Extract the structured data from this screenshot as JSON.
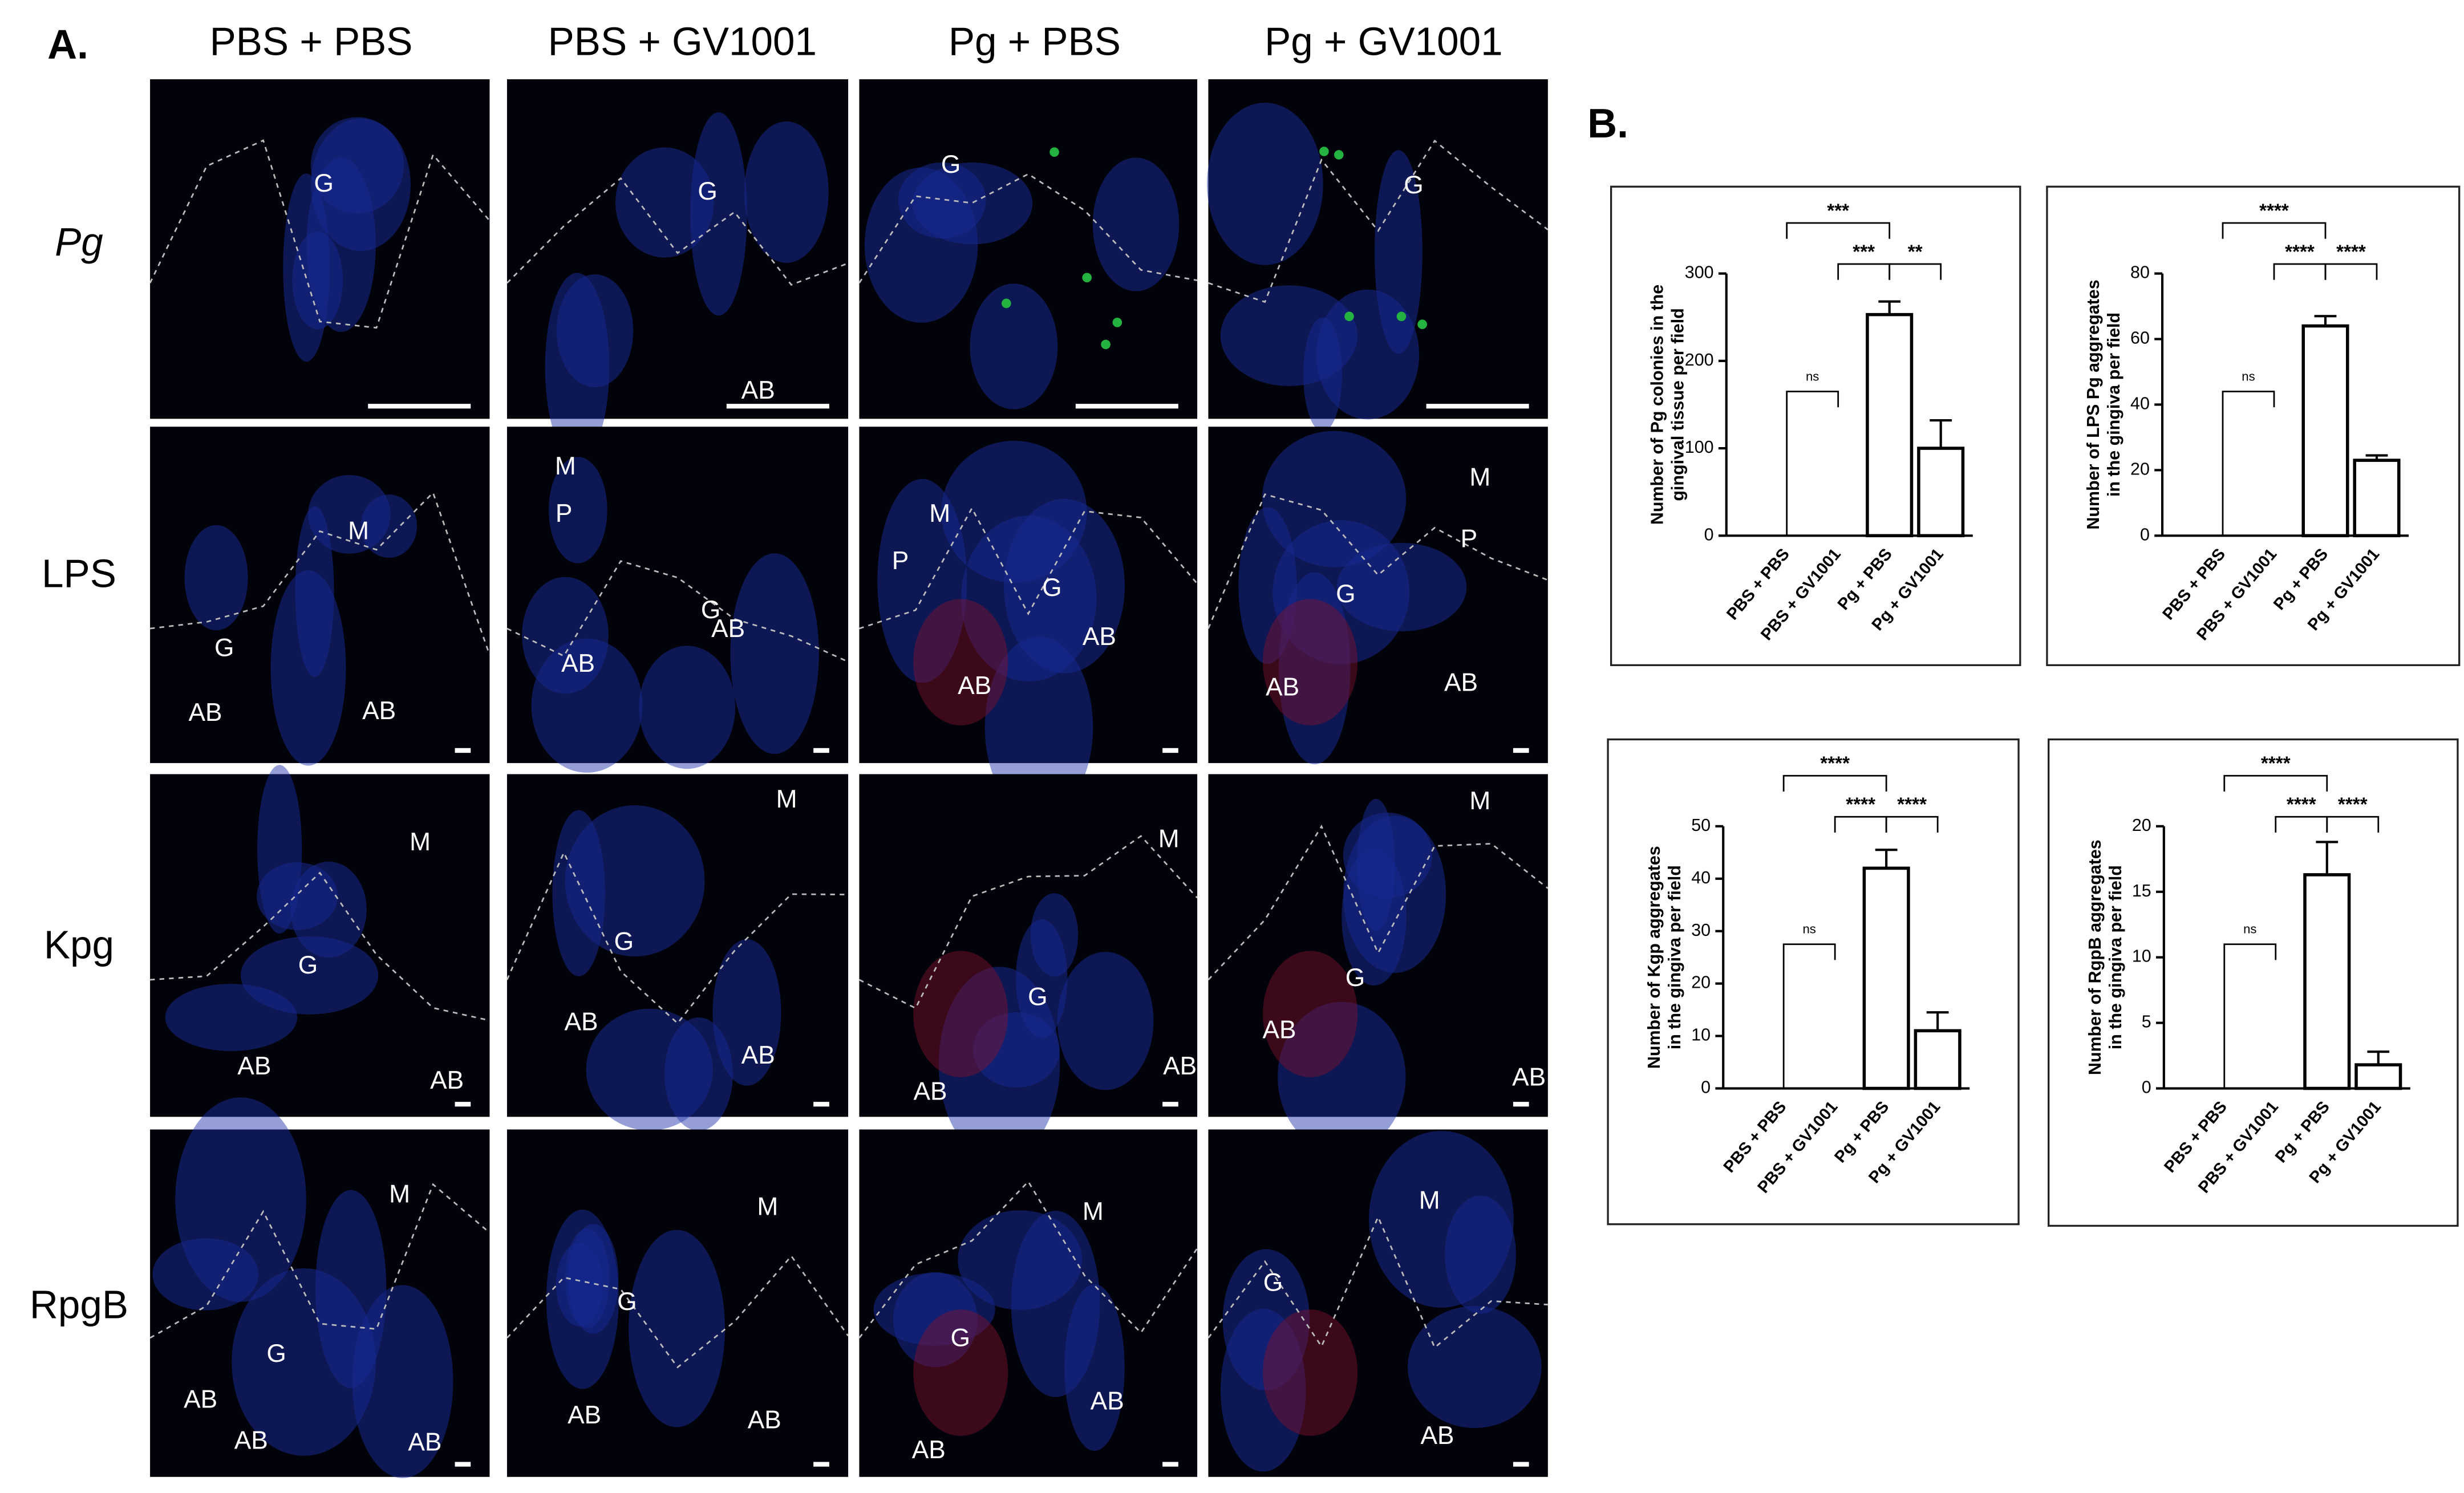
{
  "panel_a": {
    "label": "A.",
    "columns": [
      "PBS + PBS",
      "PBS + GV1001",
      "Pg + PBS",
      "Pg + GV1001"
    ],
    "rows": [
      "Pg",
      "LPS",
      "Kpg",
      "RpgB"
    ],
    "tiles": [
      [
        [
          "G"
        ],
        [
          "G",
          "AB"
        ],
        [
          "G"
        ],
        [
          "G"
        ]
      ],
      [
        [
          "M",
          "G",
          "AB",
          "AB"
        ],
        [
          "M",
          "P",
          "G",
          "AB",
          "AB"
        ],
        [
          "M",
          "P",
          "G",
          "AB",
          "AB"
        ],
        [
          "M",
          "P",
          "G",
          "AB",
          "AB"
        ]
      ],
      [
        [
          "M",
          "G",
          "AB",
          "AB"
        ],
        [
          "M",
          "G",
          "AB",
          "AB"
        ],
        [
          "M",
          "G",
          "AB",
          "AB"
        ],
        [
          "M",
          "G",
          "AB",
          "AB"
        ]
      ],
      [
        [
          "M",
          "G",
          "AB",
          "AB",
          "AB"
        ],
        [
          "M",
          "G",
          "AB",
          "AB"
        ],
        [
          "M",
          "G",
          "AB",
          "AB"
        ],
        [
          "M",
          "G",
          "AB"
        ]
      ]
    ]
  },
  "panel_b": {
    "label": "B."
  },
  "chart_data": [
    {
      "type": "bar",
      "ylabel": [
        "Number of Pg colonies in the",
        "gingival tissue per field"
      ],
      "categories": [
        "PBS + PBS",
        "PBS + GV1001",
        "Pg + PBS",
        "Pg + GV1001"
      ],
      "values": [
        0,
        0,
        253,
        100
      ],
      "errors": [
        null,
        null,
        15,
        32
      ],
      "ylim": [
        0,
        300
      ],
      "yticks": [
        0,
        100,
        200,
        300
      ],
      "significance": [
        "***",
        "***",
        "**",
        "ns"
      ]
    },
    {
      "type": "bar",
      "ylabel": [
        "Number of LPS Pg aggregates",
        "in the gingiva per field"
      ],
      "categories": [
        "PBS + PBS",
        "PBS + GV1001",
        "Pg + PBS",
        "Pg + GV1001"
      ],
      "values": [
        0,
        0,
        64,
        23
      ],
      "errors": [
        null,
        null,
        3,
        1.5
      ],
      "ylim": [
        0,
        80
      ],
      "yticks": [
        0,
        20,
        40,
        60,
        80
      ],
      "significance": [
        "****",
        "****",
        "****",
        "ns"
      ]
    },
    {
      "type": "bar",
      "ylabel": [
        "Number of Kgp aggregates",
        "in the gingiva per field"
      ],
      "categories": [
        "PBS + PBS",
        "PBS + GV1001",
        "Pg + PBS",
        "Pg + GV1001"
      ],
      "values": [
        0,
        0,
        42,
        11
      ],
      "errors": [
        null,
        null,
        3.5,
        3.5
      ],
      "ylim": [
        0,
        50
      ],
      "yticks": [
        0,
        10,
        20,
        30,
        40,
        50
      ],
      "significance": [
        "****",
        "****",
        "****",
        "ns"
      ]
    },
    {
      "type": "bar",
      "ylabel": [
        "Number of RgpB aggregates",
        "in the gingiva per field"
      ],
      "categories": [
        "PBS + PBS",
        "PBS + GV1001",
        "Pg + PBS",
        "Pg + GV1001"
      ],
      "values": [
        0,
        0,
        16.3,
        1.8
      ],
      "errors": [
        null,
        null,
        2.5,
        1.0
      ],
      "ylim": [
        0,
        20
      ],
      "yticks": [
        0,
        5,
        10,
        15,
        20
      ],
      "significance": [
        "****",
        "****",
        "****",
        "ns"
      ]
    }
  ]
}
